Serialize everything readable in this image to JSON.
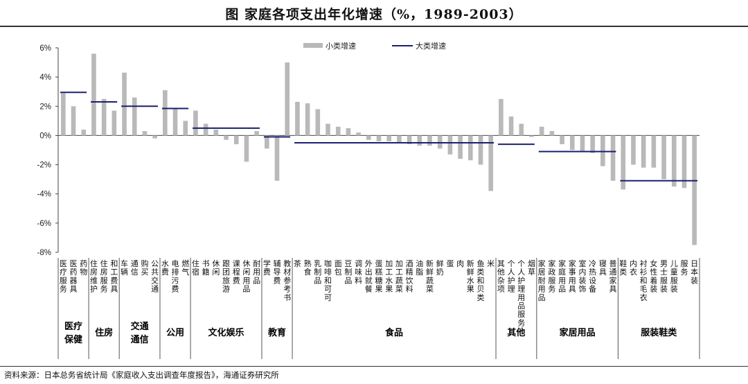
{
  "title": "图   家庭各项支出年化增速（%，1989-2003）",
  "source": "资料来源：日本总务省统计局《家庭收入支出调查年度报告》，海通证券研究所",
  "chart_data": {
    "type": "bar",
    "title": "图   家庭各项支出年化增速（%，1989-2003）",
    "ylim": [
      -8,
      7
    ],
    "yticks": [
      "6%",
      "4%",
      "2%",
      "0%",
      "-2%",
      "-4%",
      "-6%",
      "-8%"
    ],
    "legend": {
      "position": "top-center",
      "bar_label": "小类增速",
      "line_label": "大类增速"
    },
    "colors": {
      "bar": "#b9b9b9",
      "line": "#1a1f6e"
    },
    "categories": [
      "医疗服务",
      "医药器具",
      "疗养",
      "住房维护",
      "住房服务",
      "和费",
      "车辆",
      "通信",
      "购买",
      "公共交通",
      "水费",
      "电费",
      "燃气",
      "住宿",
      "书籍",
      "休闲",
      "跟团旅游",
      "课程费",
      "休闲用品",
      "耐用品",
      "学费",
      "辅导费",
      "教材参考书",
      "茶",
      "熟食",
      "乳制品",
      "咖啡",
      "面包",
      "豆制品",
      "调味料",
      "外出就餐",
      "蛋糕",
      "加工糖果",
      "加工蔬菜",
      "酒精饮料",
      "油脂",
      "新鲜蔬菜",
      "鲜奶",
      "蛋",
      "肉",
      "新鲜水果",
      "鱼类和贝类",
      "米",
      "其他杂项",
      "个人护理",
      "个人护理用品",
      "烟草",
      "家居耐用品",
      "家政服务",
      "家庭用品",
      "家事用具",
      "室内装饰",
      "冷热设备",
      "寝具",
      "普通家具",
      "鞋类",
      "内衣",
      "衬衫和毛衣",
      "女性着装",
      "男士服装",
      "儿童服装",
      "服务",
      "本装衣"
    ],
    "cat_labels": [
      "医疗服务",
      "医药器具",
      "药物",
      "住房维护",
      "住房服务",
      "和工费具",
      "车辆",
      "通信",
      "购买",
      "公共交通",
      "水费",
      "电排污费",
      "燃气",
      "住宿",
      "书籍",
      "休闲",
      "跟团旅游",
      "课程费",
      "休闲用品",
      "耐用品",
      "学费",
      "辅导费",
      "教材参考书",
      "茶",
      "熟食",
      "乳制品",
      "咖啡和可可",
      "面包",
      "豆制品",
      "调味料",
      "外出就餐",
      "蛋糕糖果",
      "加工水果",
      "加工蔬菜",
      "酒精饮料",
      "油脂",
      "新鲜蔬菜",
      "鲜奶",
      "蛋",
      "肉",
      "新鲜水果",
      "鱼类和贝类",
      "米",
      "其他杂项",
      "个人护理",
      "个人护理用品服务",
      "烟草",
      "家居耐用品",
      "家政服务",
      "家庭用品",
      "家事用具",
      "室内装饰",
      "冷热设备",
      "寝具",
      "普通家具",
      "鞋类",
      "内衣",
      "衬衫和毛衣",
      "女性着装",
      "男士服装",
      "儿童服装",
      "服务",
      "日本装"
    ],
    "values": [
      2.9,
      2.0,
      0.4,
      5.6,
      2.5,
      1.7,
      4.3,
      2.6,
      0.3,
      -0.2,
      3.1,
      1.8,
      1.0,
      1.7,
      0.8,
      0.4,
      -0.3,
      -0.6,
      -1.8,
      0.3,
      -0.9,
      -3.1,
      5.0,
      2.3,
      2.2,
      1.8,
      0.8,
      0.6,
      0.5,
      0.2,
      -0.3,
      -0.4,
      -0.4,
      -0.5,
      -0.6,
      -0.7,
      -0.7,
      -0.9,
      -1.3,
      -1.6,
      -1.7,
      -2.0,
      -3.8,
      2.5,
      1.3,
      0.8,
      -0.1,
      0.6,
      0.3,
      -0.6,
      -1.0,
      -1.1,
      -1.2,
      -2.1,
      -3.1,
      -3.7,
      -2.0,
      -2.2,
      -2.2,
      -3.0,
      -3.5,
      -3.6,
      -7.5
    ],
    "groups": [
      {
        "name": "医疗保健",
        "start": 0,
        "end": 2,
        "avg": 2.95
      },
      {
        "name": "住房",
        "start": 3,
        "end": 5,
        "avg": 2.3
      },
      {
        "name": "交通通信",
        "start": 6,
        "end": 9,
        "avg": 2.0
      },
      {
        "name": "公用",
        "start": 10,
        "end": 12,
        "avg": 1.85
      },
      {
        "name": "文化娱乐",
        "start": 13,
        "end": 19,
        "avg": 0.5
      },
      {
        "name": "教育",
        "start": 20,
        "end": 22,
        "avg": -0.1
      },
      {
        "name": "食品",
        "start": 23,
        "end": 42,
        "avg": -0.5
      },
      {
        "name": "其他",
        "start": 43,
        "end": 46,
        "avg": -0.6
      },
      {
        "name": "家居用品",
        "start": 47,
        "end": 54,
        "avg": -1.1
      },
      {
        "name": "服装鞋类",
        "start": 55,
        "end": 62,
        "avg": -3.1
      }
    ]
  }
}
